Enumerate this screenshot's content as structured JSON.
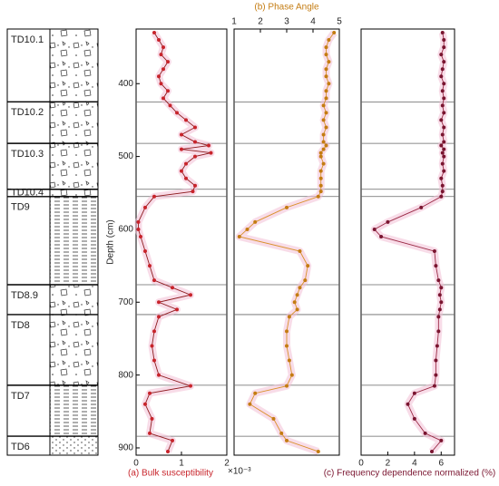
{
  "column": {
    "units": [
      {
        "label": "TD10.1",
        "top": 325,
        "bottom": 425
      },
      {
        "label": "TD10.2",
        "top": 425,
        "bottom": 482
      },
      {
        "label": "TD10.3",
        "top": 482,
        "bottom": 545
      },
      {
        "label": "TD10.4",
        "top": 545,
        "bottom": 555
      },
      {
        "label": "TD9",
        "top": 555,
        "bottom": 676
      },
      {
        "label": "TD8.9",
        "top": 676,
        "bottom": 717
      },
      {
        "label": "TD8",
        "top": 717,
        "bottom": 814
      },
      {
        "label": "TD7",
        "top": 814,
        "bottom": 884
      },
      {
        "label": "TD6",
        "top": 884,
        "bottom": 910
      }
    ]
  },
  "chart_data": [
    {
      "type": "line",
      "x_label": "(a) Bulk susceptibility",
      "x_multiplier": "×10⁻³",
      "y_label": "Depth (cm)",
      "color": "#c8242b",
      "line_color": "#8e1b1f",
      "depth": [
        330,
        340,
        350,
        360,
        370,
        380,
        390,
        400,
        410,
        420,
        430,
        440,
        450,
        460,
        470,
        480,
        485,
        490,
        495,
        500,
        510,
        520,
        530,
        540,
        548,
        555,
        570,
        590,
        600,
        610,
        630,
        650,
        670,
        680,
        690,
        700,
        710,
        720,
        740,
        760,
        780,
        800,
        815,
        825,
        840,
        860,
        880,
        890,
        905
      ],
      "values": [
        0.4,
        0.5,
        0.6,
        0.55,
        0.7,
        0.6,
        0.5,
        0.55,
        0.7,
        0.6,
        0.75,
        0.9,
        1.1,
        1.3,
        1.0,
        1.3,
        1.6,
        1.0,
        1.65,
        1.3,
        1.1,
        1.0,
        1.1,
        1.3,
        1.25,
        0.4,
        0.2,
        0.05,
        0.05,
        0.1,
        0.2,
        0.3,
        0.4,
        0.8,
        1.2,
        0.5,
        0.9,
        0.5,
        0.4,
        0.35,
        0.4,
        0.5,
        1.2,
        0.3,
        0.2,
        0.35,
        0.3,
        0.8,
        0.7
      ],
      "xlim": [
        0,
        2
      ],
      "xticks": [
        0,
        1,
        2
      ],
      "ylim": [
        325,
        910
      ],
      "yticks": [
        400,
        500,
        600,
        700,
        800,
        900
      ]
    },
    {
      "type": "line",
      "x_label": "(b) Phase Angle",
      "color": "#c47c12",
      "line_color": "#d9902a",
      "depth": [
        330,
        340,
        350,
        360,
        370,
        380,
        390,
        400,
        410,
        420,
        430,
        440,
        450,
        460,
        470,
        480,
        485,
        490,
        495,
        500,
        510,
        520,
        530,
        540,
        548,
        555,
        570,
        590,
        600,
        610,
        630,
        650,
        670,
        680,
        690,
        700,
        710,
        720,
        740,
        760,
        780,
        800,
        815,
        825,
        840,
        860,
        880,
        890,
        905
      ],
      "values": [
        4.8,
        4.6,
        4.5,
        4.5,
        4.6,
        4.5,
        4.5,
        4.6,
        4.5,
        4.5,
        4.4,
        4.5,
        4.4,
        4.5,
        4.4,
        4.4,
        4.5,
        4.4,
        4.3,
        4.3,
        4.4,
        4.3,
        4.3,
        4.3,
        4.3,
        4.2,
        3.0,
        1.8,
        1.5,
        1.2,
        3.5,
        3.8,
        3.7,
        3.5,
        3.4,
        3.3,
        3.4,
        3.1,
        3.0,
        3.0,
        3.1,
        3.2,
        3.0,
        1.8,
        1.6,
        2.5,
        2.8,
        3.0,
        4.2
      ],
      "xlim": [
        1,
        5
      ],
      "xticks": [
        1,
        2,
        3,
        4,
        5
      ],
      "ylim": [
        325,
        910
      ]
    },
    {
      "type": "line",
      "x_label": "(c) Frequency dependence normalized (%)",
      "color": "#7a1530",
      "line_color": "#9a2a45",
      "depth": [
        330,
        340,
        350,
        360,
        370,
        380,
        390,
        400,
        410,
        420,
        430,
        440,
        450,
        460,
        470,
        480,
        485,
        490,
        495,
        500,
        510,
        520,
        530,
        540,
        548,
        555,
        570,
        590,
        600,
        610,
        630,
        650,
        670,
        680,
        690,
        700,
        710,
        720,
        740,
        760,
        780,
        800,
        815,
        825,
        840,
        860,
        880,
        890,
        905
      ],
      "values": [
        6.1,
        6.2,
        6.2,
        6.0,
        6.2,
        6.1,
        6.0,
        6.2,
        6.1,
        6.2,
        6.1,
        6.2,
        6.0,
        6.2,
        6.1,
        6.2,
        6.0,
        6.2,
        6.1,
        6.2,
        6.1,
        6.2,
        6.0,
        6.1,
        6.1,
        6.0,
        4.5,
        2.0,
        1.0,
        1.5,
        5.5,
        5.6,
        5.8,
        6.0,
        5.9,
        6.0,
        5.9,
        5.8,
        5.8,
        5.7,
        5.6,
        5.6,
        5.5,
        4.0,
        3.5,
        4.0,
        4.8,
        6.0,
        5.3
      ],
      "xlim": [
        0,
        7
      ],
      "xticks": [
        0,
        2,
        4,
        6
      ],
      "ylim": [
        325,
        910
      ]
    }
  ]
}
